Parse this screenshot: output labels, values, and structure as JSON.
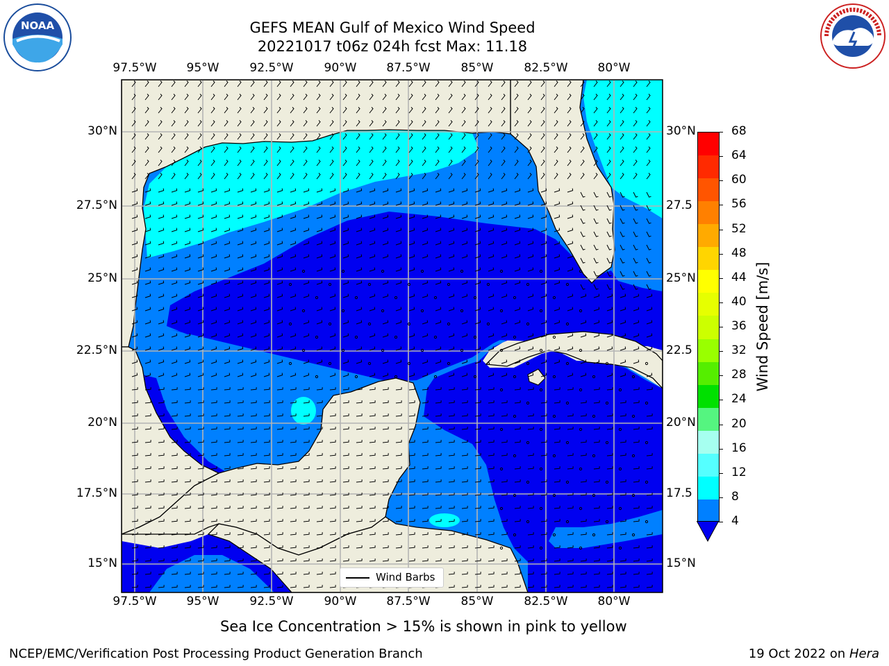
{
  "title": {
    "line1": "GEFS MEAN Gulf of Mexico Wind Speed",
    "line2": "20221017 t06z 024h fcst   Max: 11.18"
  },
  "map": {
    "lon_labels": [
      "97.5°W",
      "95°W",
      "92.5°W",
      "90°W",
      "87.5°W",
      "85°W",
      "82.5°W",
      "80°W"
    ],
    "lat_labels_left": [
      "30°N",
      "27.5°N",
      "25°N",
      "22.5°N",
      "20°N",
      "17.5°N",
      "15°N"
    ],
    "lat_labels_right": [
      "30°N",
      "27.5",
      "25°N",
      "22.5",
      "20°N",
      "17.5",
      "15°N"
    ],
    "legend_label": "Wind Barbs",
    "colors": {
      "land": "#eeeddd",
      "ocean_4_8": "#0080ff",
      "ocean_0_4": "#0000f0",
      "ocean_8_12": "#00ffff"
    }
  },
  "colorbar": {
    "label": "Wind Speed [m/s]",
    "ticks": [
      "68",
      "64",
      "60",
      "56",
      "52",
      "48",
      "44",
      "40",
      "36",
      "32",
      "28",
      "24",
      "20",
      "16",
      "12",
      "8",
      "4"
    ],
    "colors": [
      "#ff0000",
      "#ff2a00",
      "#ff5500",
      "#ff8000",
      "#ffaa00",
      "#ffd500",
      "#ffff00",
      "#e6ff00",
      "#ccff00",
      "#99ff00",
      "#55ee00",
      "#00e000",
      "#55f580",
      "#a6fff0",
      "#55ffff",
      "#00ffff",
      "#0080ff"
    ],
    "under_color": "#0000f0"
  },
  "note": "Sea Ice Concentration > 15% is shown in pink to yellow",
  "footer": {
    "left": "NCEP/EMC/Verification Post Processing Product Generation Branch",
    "right_prefix": "19 Oct 2022 on ",
    "right_machine": "Hera"
  },
  "logos": {
    "left": "NOAA",
    "right": "NATIONAL WEATHER SERVICE"
  }
}
